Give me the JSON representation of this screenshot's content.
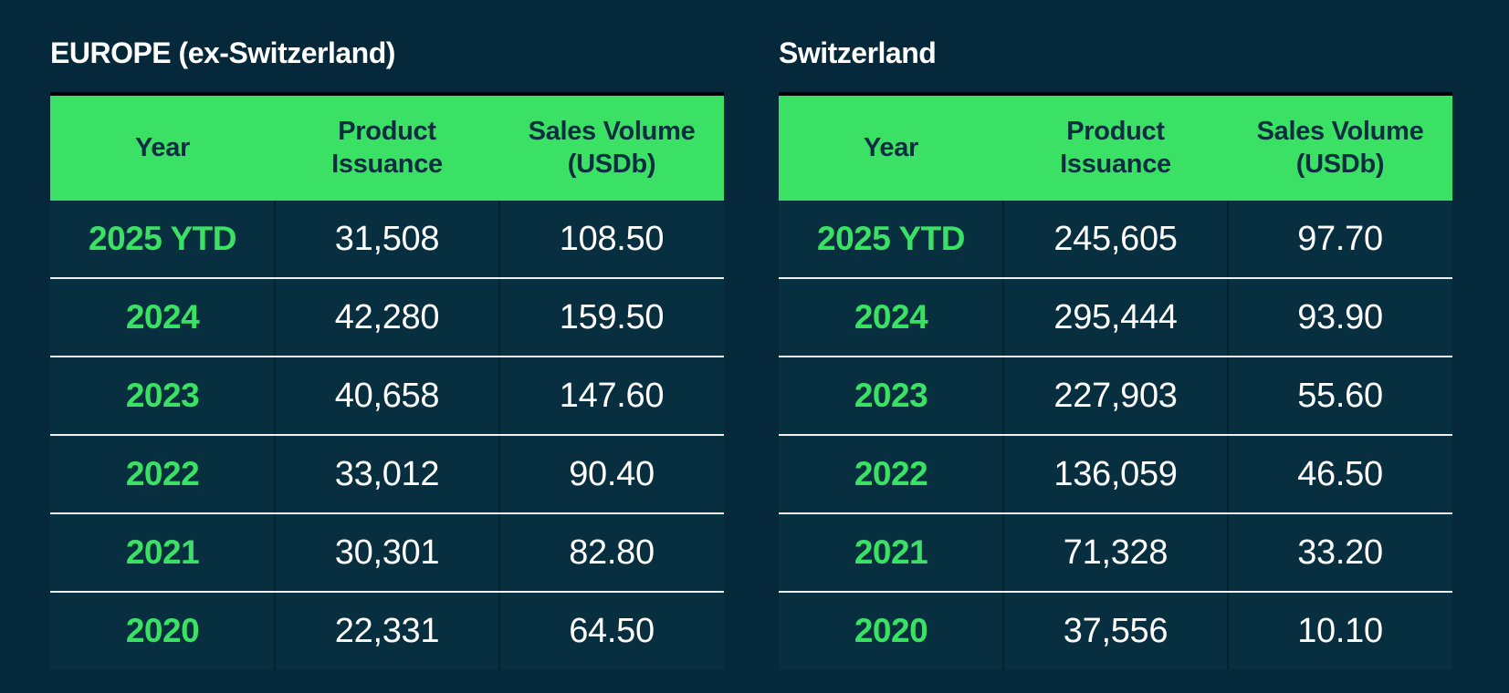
{
  "colors": {
    "page_background": "#05293a",
    "table_background": "#082f40",
    "header_green": "#3be164",
    "year_text_green": "#3be164",
    "header_text": "#0d2e41",
    "value_text": "#ffffff",
    "title_text": "#ffffff",
    "row_separator": "#eef1f0",
    "column_separator": "#04222f",
    "table_top_border": "#000000"
  },
  "chart_data": [
    {
      "type": "table",
      "title": "EUROPE (ex-Switzerland)",
      "columns": [
        "Year",
        "Product Issuance",
        "Sales Volume (USDb)"
      ],
      "rows": [
        [
          "2025 YTD",
          "31,508",
          "108.50"
        ],
        [
          "2024",
          "42,280",
          "159.50"
        ],
        [
          "2023",
          "40,658",
          "147.60"
        ],
        [
          "2022",
          "33,012",
          "90.40"
        ],
        [
          "2021",
          "30,301",
          "82.80"
        ],
        [
          "2020",
          "22,331",
          "64.50"
        ]
      ]
    },
    {
      "type": "table",
      "title": "Switzerland",
      "columns": [
        "Year",
        "Product Issuance",
        "Sales Volume (USDb)"
      ],
      "rows": [
        [
          "2025 YTD",
          "245,605",
          "97.70"
        ],
        [
          "2024",
          "295,444",
          "93.90"
        ],
        [
          "2023",
          "227,903",
          "55.60"
        ],
        [
          "2022",
          "136,059",
          "46.50"
        ],
        [
          "2021",
          "71,328",
          "33.20"
        ],
        [
          "2020",
          "37,556",
          "10.10"
        ]
      ]
    }
  ]
}
